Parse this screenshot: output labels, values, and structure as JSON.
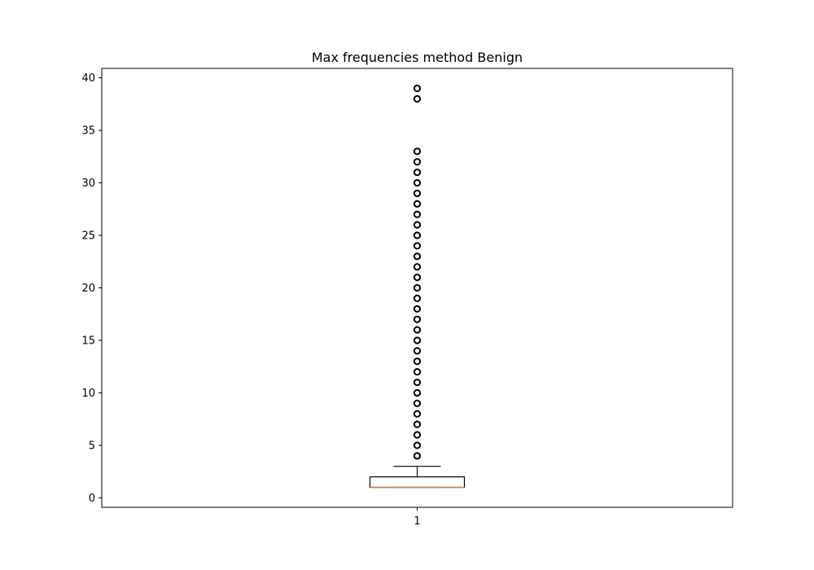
{
  "chart_data": {
    "type": "box",
    "title": "Max frequencies method Benign",
    "xlabel": "",
    "ylabel": "",
    "categories": [
      "1"
    ],
    "ylim": [
      -0.9,
      40.9
    ],
    "yticks": [
      0,
      5,
      10,
      15,
      20,
      25,
      30,
      35,
      40
    ],
    "grid": false,
    "legend": "none",
    "box": {
      "name": "1",
      "q1": 1,
      "median": 1,
      "q3": 2,
      "whisker_low": 1,
      "whisker_high": 3,
      "outliers": [
        4,
        5,
        6,
        7,
        8,
        9,
        10,
        11,
        12,
        13,
        14,
        15,
        16,
        17,
        18,
        19,
        20,
        21,
        22,
        23,
        24,
        25,
        26,
        27,
        28,
        29,
        30,
        31,
        32,
        33,
        38,
        39
      ]
    },
    "colors": {
      "box": "#000000",
      "median": "#e07b39",
      "outlier": "#000000"
    }
  }
}
